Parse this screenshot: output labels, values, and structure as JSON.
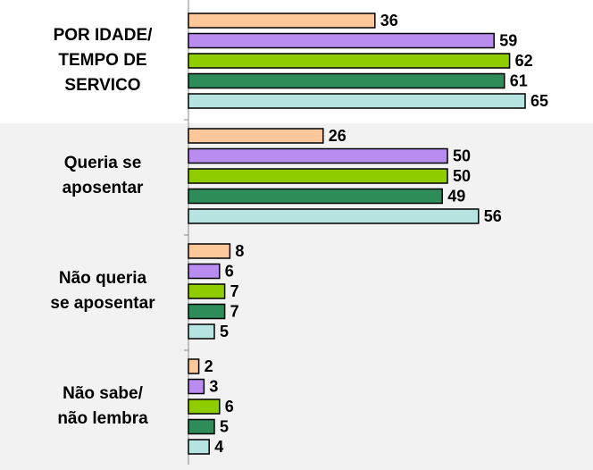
{
  "chart_data": {
    "type": "bar",
    "orientation": "horizontal",
    "categories": [
      "POR IDADE/\nTEMPO DE\nSERVICO",
      "Queria se\naposentar",
      "Não queria\nse aposentar",
      "Não sabe/\nnão lembra"
    ],
    "series": [
      {
        "color": "#fcc89b",
        "values": [
          36,
          26,
          8,
          2
        ]
      },
      {
        "color": "#b98cf0",
        "values": [
          59,
          50,
          6,
          3
        ]
      },
      {
        "color": "#8fcc00",
        "values": [
          62,
          50,
          7,
          6
        ]
      },
      {
        "color": "#2e8b5a",
        "values": [
          61,
          49,
          7,
          5
        ]
      },
      {
        "color": "#b7e3e0",
        "values": [
          65,
          56,
          5,
          4
        ]
      }
    ]
  }
}
